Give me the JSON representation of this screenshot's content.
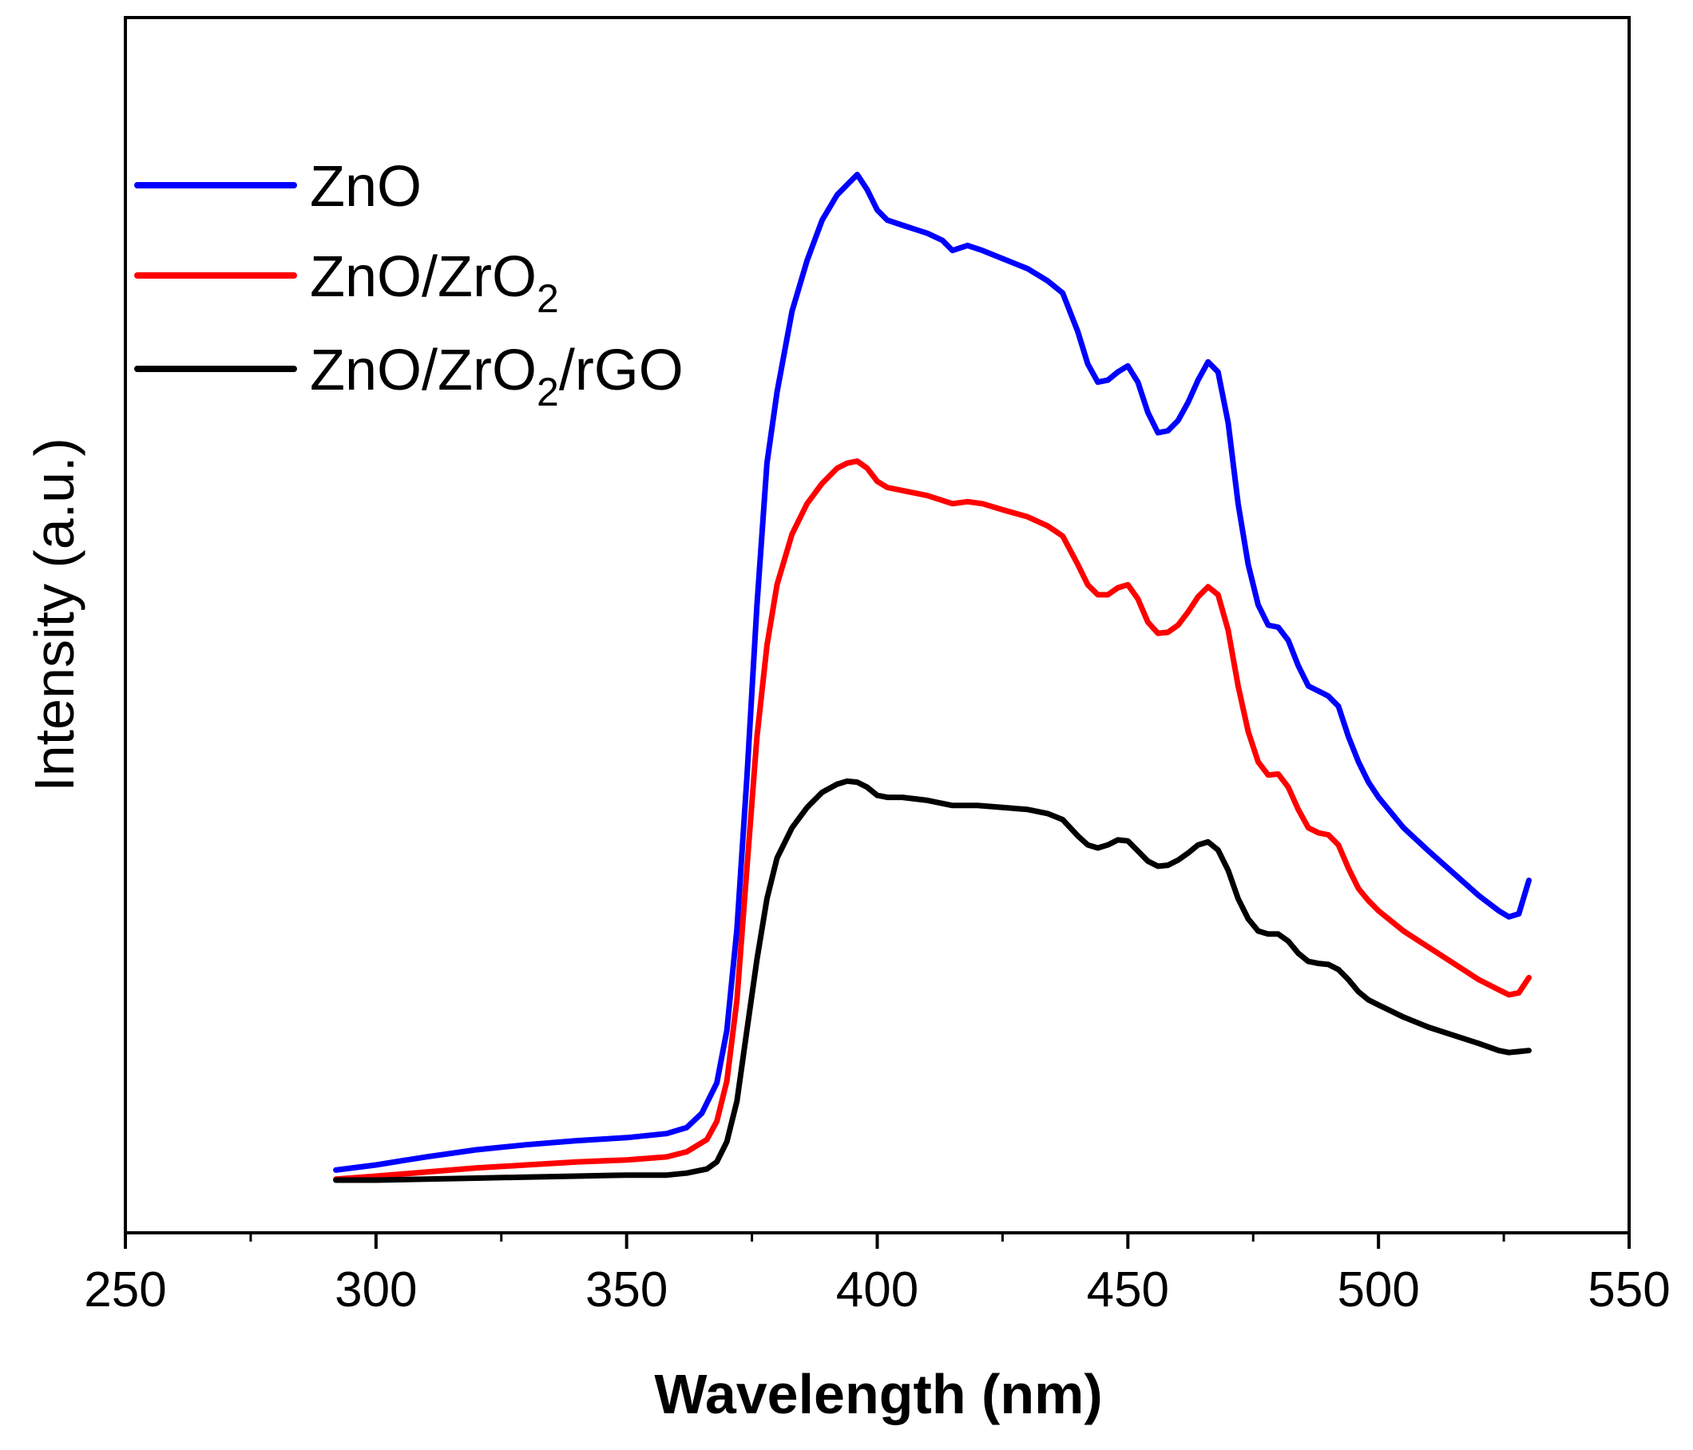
{
  "chart_data": {
    "type": "line",
    "title": "",
    "xlabel": "Wavelength (nm)",
    "ylabel": "Intensity (a.u.)",
    "xlim": [
      250,
      550
    ],
    "ylim": [
      0,
      1.2
    ],
    "xticks": [
      250,
      300,
      350,
      400,
      450,
      500,
      550
    ],
    "grid": false,
    "legend_position": "top-left",
    "series": [
      {
        "name": "ZnO",
        "label_main": "ZnO",
        "label_sub": "",
        "label_tail": "",
        "color": "#0000ff",
        "points": [
          [
            292,
            0.062
          ],
          [
            300,
            0.067
          ],
          [
            310,
            0.075
          ],
          [
            320,
            0.082
          ],
          [
            330,
            0.087
          ],
          [
            340,
            0.091
          ],
          [
            350,
            0.094
          ],
          [
            358,
            0.098
          ],
          [
            362,
            0.104
          ],
          [
            365,
            0.118
          ],
          [
            368,
            0.148
          ],
          [
            370,
            0.2
          ],
          [
            372,
            0.3
          ],
          [
            374,
            0.45
          ],
          [
            376,
            0.62
          ],
          [
            378,
            0.76
          ],
          [
            380,
            0.83
          ],
          [
            383,
            0.91
          ],
          [
            386,
            0.96
          ],
          [
            389,
            1.0
          ],
          [
            392,
            1.025
          ],
          [
            394,
            1.035
          ],
          [
            396,
            1.045
          ],
          [
            398,
            1.03
          ],
          [
            400,
            1.01
          ],
          [
            402,
            1.0
          ],
          [
            405,
            0.995
          ],
          [
            410,
            0.987
          ],
          [
            413,
            0.98
          ],
          [
            415,
            0.97
          ],
          [
            418,
            0.975
          ],
          [
            421,
            0.97
          ],
          [
            425,
            0.962
          ],
          [
            430,
            0.952
          ],
          [
            434,
            0.94
          ],
          [
            437,
            0.928
          ],
          [
            440,
            0.89
          ],
          [
            442,
            0.858
          ],
          [
            444,
            0.84
          ],
          [
            446,
            0.842
          ],
          [
            448,
            0.85
          ],
          [
            450,
            0.856
          ],
          [
            452,
            0.84
          ],
          [
            454,
            0.81
          ],
          [
            456,
            0.79
          ],
          [
            458,
            0.792
          ],
          [
            460,
            0.802
          ],
          [
            462,
            0.82
          ],
          [
            464,
            0.842
          ],
          [
            466,
            0.86
          ],
          [
            468,
            0.85
          ],
          [
            470,
            0.8
          ],
          [
            472,
            0.72
          ],
          [
            474,
            0.66
          ],
          [
            476,
            0.62
          ],
          [
            478,
            0.6
          ],
          [
            480,
            0.598
          ],
          [
            482,
            0.585
          ],
          [
            484,
            0.56
          ],
          [
            486,
            0.54
          ],
          [
            488,
            0.535
          ],
          [
            490,
            0.53
          ],
          [
            492,
            0.52
          ],
          [
            494,
            0.49
          ],
          [
            496,
            0.465
          ],
          [
            498,
            0.445
          ],
          [
            500,
            0.43
          ],
          [
            505,
            0.4
          ],
          [
            510,
            0.377
          ],
          [
            515,
            0.355
          ],
          [
            520,
            0.333
          ],
          [
            524,
            0.318
          ],
          [
            526,
            0.312
          ],
          [
            528,
            0.315
          ],
          [
            530,
            0.348
          ]
        ]
      },
      {
        "name": "ZnO/ZrO2",
        "label_main": "ZnO/ZrO",
        "label_sub": "2",
        "label_tail": "",
        "color": "#ff0000",
        "points": [
          [
            292,
            0.053
          ],
          [
            300,
            0.056
          ],
          [
            310,
            0.06
          ],
          [
            320,
            0.064
          ],
          [
            330,
            0.067
          ],
          [
            340,
            0.07
          ],
          [
            350,
            0.072
          ],
          [
            358,
            0.075
          ],
          [
            362,
            0.08
          ],
          [
            366,
            0.092
          ],
          [
            368,
            0.11
          ],
          [
            370,
            0.15
          ],
          [
            372,
            0.23
          ],
          [
            374,
            0.36
          ],
          [
            376,
            0.49
          ],
          [
            378,
            0.58
          ],
          [
            380,
            0.64
          ],
          [
            383,
            0.69
          ],
          [
            386,
            0.72
          ],
          [
            389,
            0.74
          ],
          [
            392,
            0.755
          ],
          [
            394,
            0.76
          ],
          [
            396,
            0.762
          ],
          [
            398,
            0.755
          ],
          [
            400,
            0.742
          ],
          [
            402,
            0.736
          ],
          [
            405,
            0.733
          ],
          [
            410,
            0.728
          ],
          [
            415,
            0.72
          ],
          [
            418,
            0.722
          ],
          [
            421,
            0.72
          ],
          [
            425,
            0.714
          ],
          [
            430,
            0.707
          ],
          [
            434,
            0.698
          ],
          [
            437,
            0.688
          ],
          [
            440,
            0.66
          ],
          [
            442,
            0.64
          ],
          [
            444,
            0.63
          ],
          [
            446,
            0.63
          ],
          [
            448,
            0.637
          ],
          [
            450,
            0.64
          ],
          [
            452,
            0.626
          ],
          [
            454,
            0.603
          ],
          [
            456,
            0.592
          ],
          [
            458,
            0.593
          ],
          [
            460,
            0.6
          ],
          [
            462,
            0.613
          ],
          [
            464,
            0.628
          ],
          [
            466,
            0.638
          ],
          [
            468,
            0.63
          ],
          [
            470,
            0.595
          ],
          [
            472,
            0.54
          ],
          [
            474,
            0.495
          ],
          [
            476,
            0.465
          ],
          [
            478,
            0.452
          ],
          [
            480,
            0.453
          ],
          [
            482,
            0.44
          ],
          [
            484,
            0.418
          ],
          [
            486,
            0.4
          ],
          [
            488,
            0.395
          ],
          [
            490,
            0.393
          ],
          [
            492,
            0.383
          ],
          [
            494,
            0.36
          ],
          [
            496,
            0.34
          ],
          [
            498,
            0.328
          ],
          [
            500,
            0.318
          ],
          [
            505,
            0.298
          ],
          [
            510,
            0.282
          ],
          [
            515,
            0.266
          ],
          [
            520,
            0.25
          ],
          [
            524,
            0.24
          ],
          [
            526,
            0.235
          ],
          [
            528,
            0.237
          ],
          [
            530,
            0.252
          ]
        ]
      },
      {
        "name": "ZnO/ZrO2/rGO",
        "label_main": "ZnO/ZrO",
        "label_sub": "2",
        "label_tail": "/rGO",
        "color": "#000000",
        "points": [
          [
            292,
            0.052
          ],
          [
            300,
            0.052
          ],
          [
            310,
            0.053
          ],
          [
            320,
            0.054
          ],
          [
            330,
            0.055
          ],
          [
            340,
            0.056
          ],
          [
            350,
            0.057
          ],
          [
            358,
            0.057
          ],
          [
            362,
            0.059
          ],
          [
            366,
            0.063
          ],
          [
            368,
            0.07
          ],
          [
            370,
            0.09
          ],
          [
            372,
            0.13
          ],
          [
            374,
            0.2
          ],
          [
            376,
            0.27
          ],
          [
            378,
            0.33
          ],
          [
            380,
            0.37
          ],
          [
            383,
            0.4
          ],
          [
            386,
            0.42
          ],
          [
            389,
            0.435
          ],
          [
            392,
            0.443
          ],
          [
            394,
            0.446
          ],
          [
            396,
            0.445
          ],
          [
            398,
            0.44
          ],
          [
            400,
            0.432
          ],
          [
            402,
            0.43
          ],
          [
            405,
            0.43
          ],
          [
            410,
            0.427
          ],
          [
            415,
            0.422
          ],
          [
            420,
            0.422
          ],
          [
            425,
            0.42
          ],
          [
            430,
            0.418
          ],
          [
            434,
            0.414
          ],
          [
            437,
            0.408
          ],
          [
            440,
            0.392
          ],
          [
            442,
            0.383
          ],
          [
            444,
            0.38
          ],
          [
            446,
            0.383
          ],
          [
            448,
            0.388
          ],
          [
            450,
            0.387
          ],
          [
            452,
            0.377
          ],
          [
            454,
            0.367
          ],
          [
            456,
            0.362
          ],
          [
            458,
            0.363
          ],
          [
            460,
            0.368
          ],
          [
            462,
            0.375
          ],
          [
            464,
            0.383
          ],
          [
            466,
            0.386
          ],
          [
            468,
            0.378
          ],
          [
            470,
            0.358
          ],
          [
            472,
            0.33
          ],
          [
            474,
            0.31
          ],
          [
            476,
            0.298
          ],
          [
            478,
            0.295
          ],
          [
            480,
            0.295
          ],
          [
            482,
            0.288
          ],
          [
            484,
            0.276
          ],
          [
            486,
            0.268
          ],
          [
            488,
            0.266
          ],
          [
            490,
            0.265
          ],
          [
            492,
            0.26
          ],
          [
            494,
            0.25
          ],
          [
            496,
            0.238
          ],
          [
            498,
            0.23
          ],
          [
            500,
            0.225
          ],
          [
            505,
            0.213
          ],
          [
            510,
            0.203
          ],
          [
            515,
            0.195
          ],
          [
            520,
            0.187
          ],
          [
            524,
            0.18
          ],
          [
            526,
            0.178
          ],
          [
            530,
            0.18
          ]
        ]
      }
    ]
  }
}
